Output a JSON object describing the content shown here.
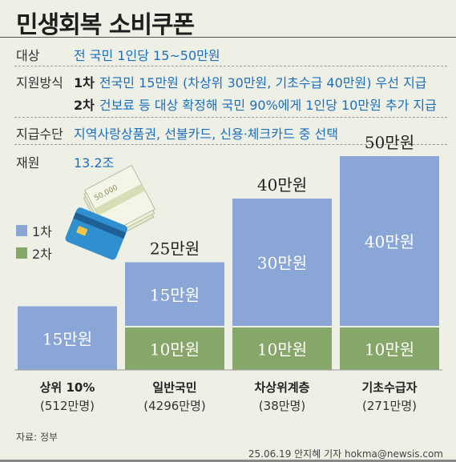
{
  "header": {
    "title": "민생회복 소비쿠폰"
  },
  "info": {
    "target_label": "대상",
    "target_value": "전 국민 1인당 15~50만원",
    "method_label": "지원방식",
    "phase1_tag": "1차",
    "phase1_text": "전국민 15만원 (차상위 30만원, 기초수급 40만원) 우선 지급",
    "phase2_tag": "2차",
    "phase2_text": "건보료 등 대상 확정해 국민 90%에게 1인당 10만원 추가 지급",
    "means_label": "지급수단",
    "means_value": "지역사랑상품권, 선불카드, 신용·체크카드 중 선택",
    "budget_label": "재원",
    "budget_value": "13.2조"
  },
  "legend": {
    "phase1": "1차",
    "phase2": "2차"
  },
  "illustration": {
    "bill_text": "50,000"
  },
  "chart_data": {
    "type": "bar",
    "stacked": true,
    "categories": [
      "상위 10%",
      "일반국민",
      "차상위계층",
      "기초수급자"
    ],
    "category_notes": [
      "(512만명)",
      "(4296만명)",
      "(38만명)",
      "(271만명)"
    ],
    "unit": "만원",
    "series": [
      {
        "name": "1차",
        "values": [
          15,
          15,
          30,
          40
        ],
        "labels": [
          "15만원",
          "15만원",
          "30만원",
          "40만원"
        ]
      },
      {
        "name": "2차",
        "values": [
          0,
          10,
          10,
          10
        ],
        "labels": [
          "",
          "10만원",
          "10만원",
          "10만원"
        ]
      }
    ],
    "totals": [
      "",
      "25만원",
      "40만원",
      "50만원"
    ],
    "ylim": [
      0,
      50
    ],
    "colors": {
      "phase1": "#8aa6d6",
      "phase2": "#86a66a"
    }
  },
  "footer": {
    "source": "자료: 정부",
    "credit": "25.06.19 안지혜 기자 hokma@newsis.com"
  }
}
